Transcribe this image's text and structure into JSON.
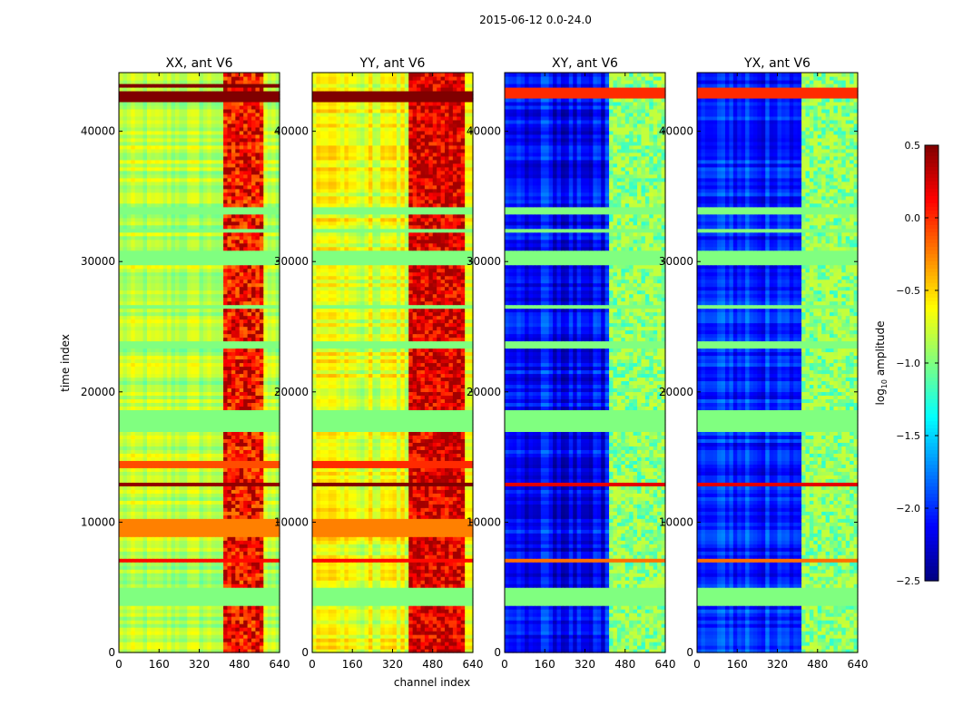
{
  "figure": {
    "suptitle": "2015-06-12 0.0-24.0"
  },
  "chart_data": {
    "type": "heatmap",
    "xlabel": "channel index",
    "ylabel": "time index",
    "x_ticks": [
      0,
      160,
      320,
      480,
      640
    ],
    "y_ticks": [
      0,
      10000,
      20000,
      30000,
      40000
    ],
    "xlim": [
      0,
      640
    ],
    "ylim": [
      0,
      44500
    ],
    "panels": [
      {
        "title": "XX, ant V6",
        "base": -0.85,
        "colvar": 0.25,
        "bright_band": [
          410,
          580
        ],
        "bright_val": 0.0,
        "dark_band": [
          410,
          580
        ],
        "dark_val": 0.4,
        "hot_rows": [
          [
            42400,
            43000,
            0.5
          ],
          [
            43300,
            43600,
            0.5
          ],
          [
            12700,
            13200,
            0.45
          ],
          [
            7000,
            7300,
            0.1
          ],
          [
            14200,
            14700,
            -0.1
          ],
          [
            9000,
            10200,
            -0.25
          ]
        ]
      },
      {
        "title": "YY, ant V6",
        "base": -0.7,
        "colvar": 0.3,
        "bright_band": [
          390,
          600
        ],
        "bright_val": 0.15,
        "dark_band": [
          390,
          600
        ],
        "dark_val": 0.4,
        "hot_rows": [
          [
            42300,
            43200,
            0.5
          ],
          [
            12700,
            13200,
            0.5
          ],
          [
            7000,
            7300,
            0.1
          ],
          [
            14200,
            14700,
            0.0
          ],
          [
            9000,
            10200,
            -0.25
          ]
        ]
      },
      {
        "title": "XY, ant V6",
        "base": -2.1,
        "colvar": 0.4,
        "bright_band": [
          410,
          640
        ],
        "bright_val": -1.0,
        "dark_band": [
          410,
          600
        ],
        "dark_val": -0.8,
        "hot_rows": [
          [
            42500,
            43400,
            0.0
          ],
          [
            12700,
            13200,
            0.2
          ],
          [
            7000,
            7300,
            -0.2
          ]
        ]
      },
      {
        "title": "YX, ant V6",
        "base": -2.0,
        "colvar": 0.4,
        "bright_band": [
          410,
          640
        ],
        "bright_val": -1.0,
        "dark_band": [
          410,
          600
        ],
        "dark_val": -0.8,
        "hot_rows": [
          [
            42500,
            43400,
            0.0
          ],
          [
            12700,
            13200,
            0.2
          ],
          [
            7000,
            7300,
            -0.2
          ]
        ]
      }
    ],
    "flagged_rows": [
      [
        3700,
        5100
      ],
      [
        23300,
        24000
      ],
      [
        29700,
        31000
      ],
      [
        33700,
        34200
      ],
      [
        17000,
        18500
      ],
      [
        26300,
        26800
      ],
      [
        8800,
        8900
      ],
      [
        32300,
        32500
      ]
    ],
    "flag_value": -1.0,
    "colorbar": {
      "label": "log",
      "label_sub": "10",
      "label_rest": " amplitude",
      "range": [
        -2.5,
        0.5
      ],
      "ticks": [
        "0.5",
        "0.0",
        "−0.5",
        "−1.0",
        "−1.5",
        "−2.0",
        "−2.5"
      ],
      "tick_values": [
        0.5,
        0.0,
        -0.5,
        -1.0,
        -1.5,
        -2.0,
        -2.5
      ],
      "colormap": "jet"
    }
  }
}
